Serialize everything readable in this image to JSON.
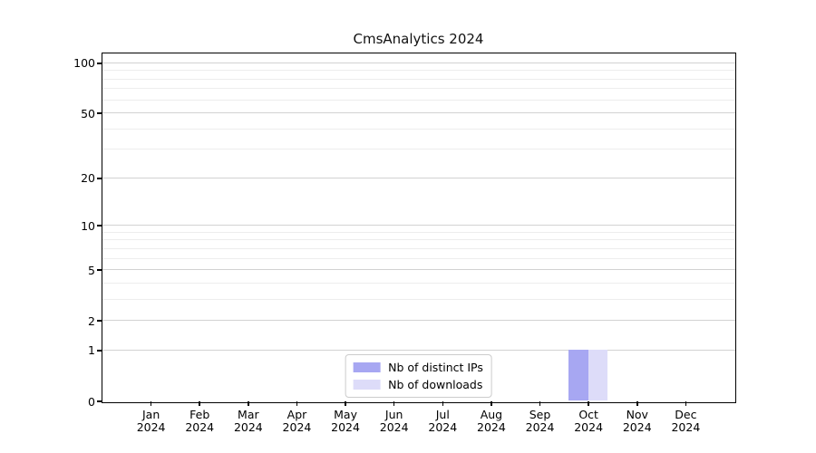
{
  "figure": {
    "title": "CmsAnalytics 2024"
  },
  "chart_data": {
    "type": "bar",
    "title": "CmsAnalytics 2024",
    "xlabel": "",
    "ylabel": "",
    "categories": [
      {
        "month": "Jan",
        "year": "2024"
      },
      {
        "month": "Feb",
        "year": "2024"
      },
      {
        "month": "Mar",
        "year": "2024"
      },
      {
        "month": "Apr",
        "year": "2024"
      },
      {
        "month": "May",
        "year": "2024"
      },
      {
        "month": "Jun",
        "year": "2024"
      },
      {
        "month": "Jul",
        "year": "2024"
      },
      {
        "month": "Aug",
        "year": "2024"
      },
      {
        "month": "Sep",
        "year": "2024"
      },
      {
        "month": "Oct",
        "year": "2024"
      },
      {
        "month": "Nov",
        "year": "2024"
      },
      {
        "month": "Dec",
        "year": "2024"
      }
    ],
    "series": [
      {
        "name": "Nb of distinct IPs",
        "color": "#a7a7f2",
        "values": [
          0,
          0,
          0,
          0,
          0,
          0,
          0,
          0,
          0,
          1,
          0,
          0
        ]
      },
      {
        "name": "Nb of downloads",
        "color": "#dddcf9",
        "values": [
          0,
          0,
          0,
          0,
          0,
          0,
          0,
          0,
          0,
          1,
          0,
          0
        ]
      }
    ],
    "yscale": "log1p",
    "ylim": [
      0,
      115
    ],
    "y_major_ticks": [
      0,
      1,
      2,
      5,
      10,
      20,
      50,
      100
    ],
    "y_minor_ticks": [
      3,
      4,
      6,
      7,
      8,
      9,
      30,
      40,
      60,
      70,
      80,
      90
    ],
    "grid": true,
    "legend_position": "lower center",
    "colors": {
      "major_grid": "#d2d2d2",
      "minor_grid": "#ededed",
      "spine": "#000000",
      "text": "#000000",
      "legend_border": "#cccccc"
    }
  }
}
